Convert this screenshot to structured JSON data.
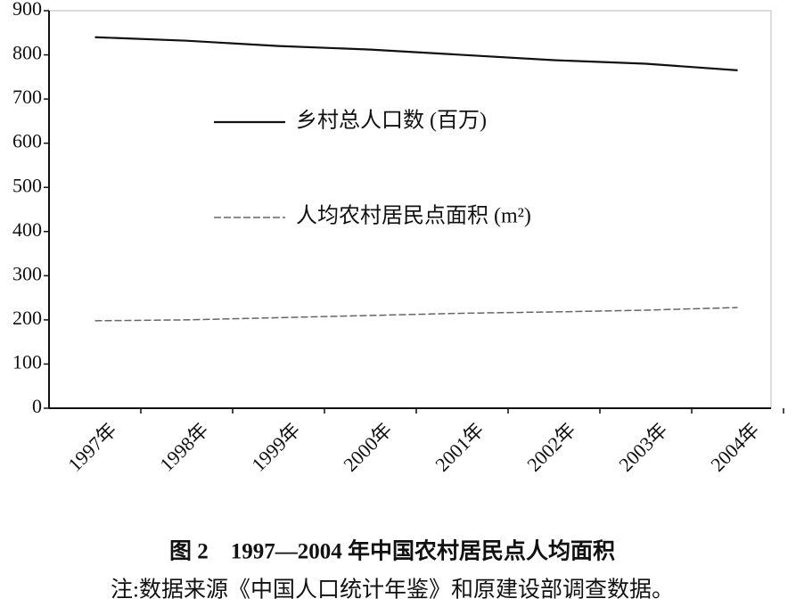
{
  "chart_data": {
    "type": "line",
    "categories": [
      "1997年",
      "1998年",
      "1999年",
      "2000年",
      "2001年",
      "2002年",
      "2003年",
      "2004年"
    ],
    "series": [
      {
        "name": "乡村总人口数 (百万)",
        "color": "#111111",
        "dash": false,
        "values": [
          840,
          832,
          820,
          812,
          800,
          788,
          780,
          765
        ]
      },
      {
        "name": "人均农村居民点面积 (m²)",
        "color": "#666666",
        "dash": true,
        "values": [
          198,
          200,
          205,
          210,
          215,
          218,
          222,
          228
        ]
      }
    ],
    "ylim": [
      0,
      900
    ],
    "yticks": [
      0,
      100,
      200,
      300,
      400,
      500,
      600,
      700,
      800,
      900
    ],
    "caption": "图 2　1997—2004 年中国农村居民点人均面积",
    "note": "注:数据来源《中国人口统计年鉴》和原建设部调查数据。"
  }
}
